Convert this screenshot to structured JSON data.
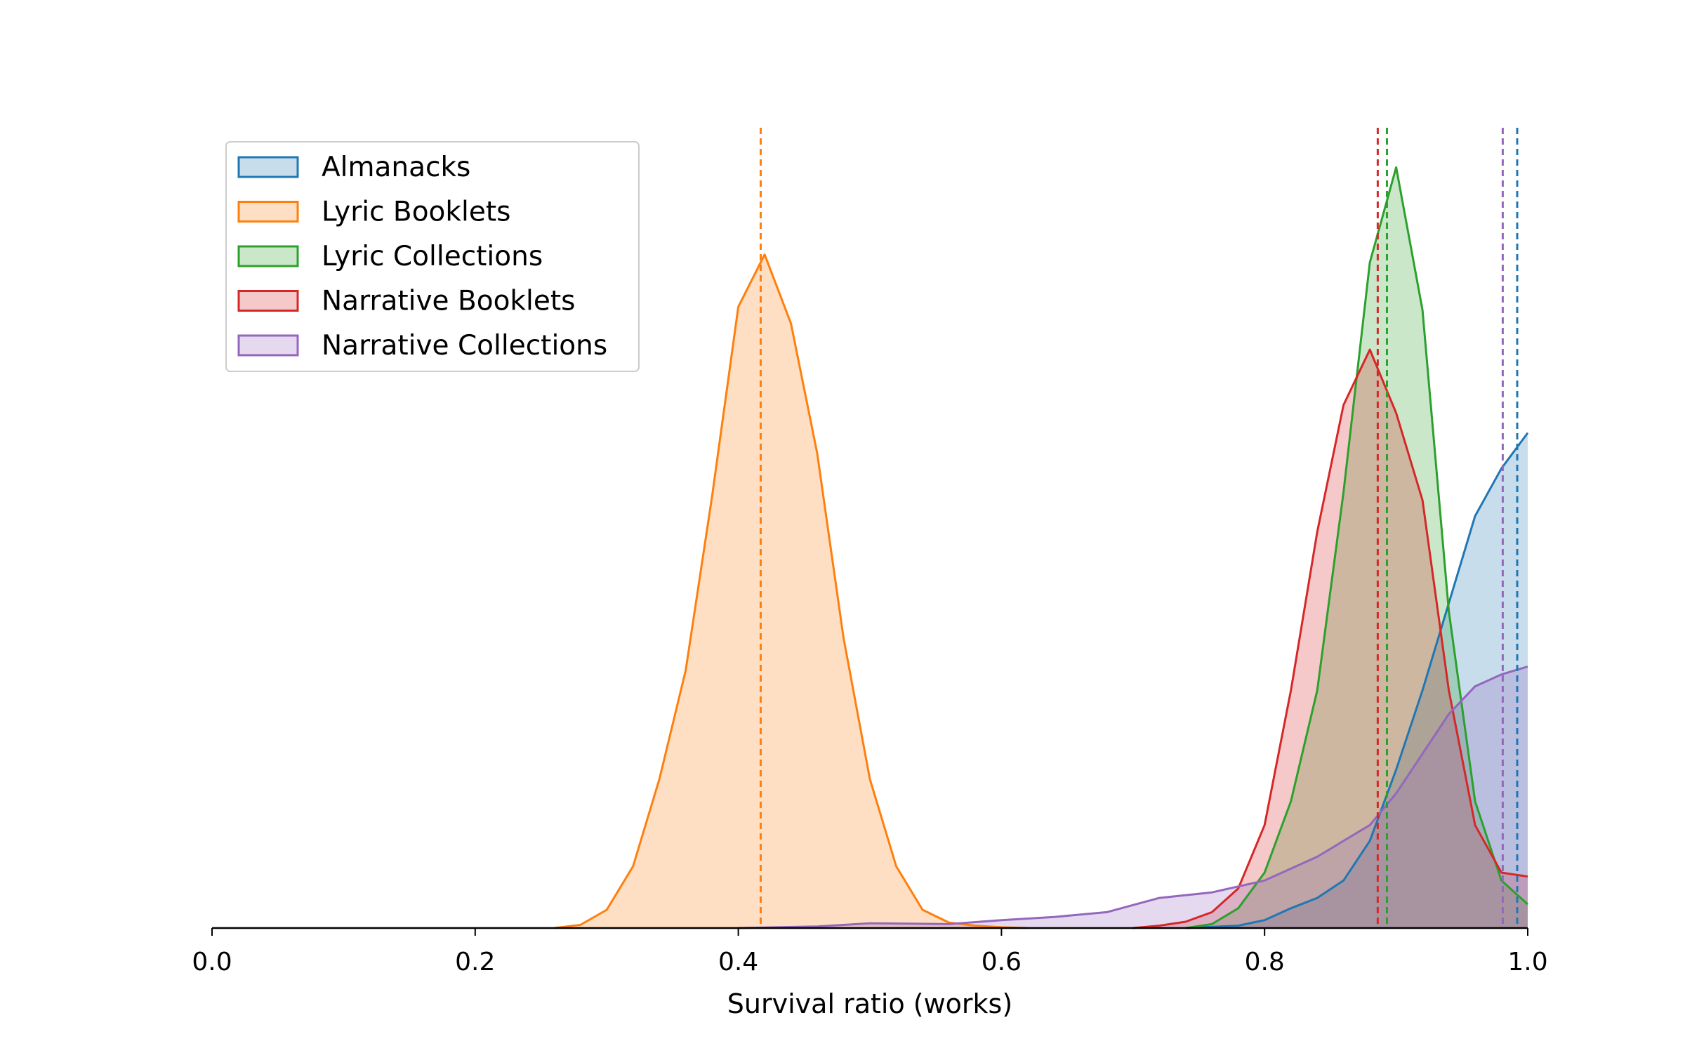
{
  "chart_data": {
    "type": "density",
    "x_label": "Survival ratio (works)",
    "xlim": [
      0,
      1
    ],
    "ylim": [
      0,
      10.1
    ],
    "xticks": [
      {
        "value": 0,
        "label": "0.0"
      },
      {
        "value": 0.2,
        "label": "0.2"
      },
      {
        "value": 0.4,
        "label": "0.4"
      },
      {
        "value": 0.6,
        "label": "0.6"
      },
      {
        "value": 0.8,
        "label": "0.8"
      },
      {
        "value": 1,
        "label": "1.0"
      }
    ],
    "legend": "upper left",
    "series": [
      {
        "name": "Almanacks",
        "color": "#1f77b4",
        "mean": 0.992,
        "x": [
          0.74,
          0.78,
          0.8,
          0.82,
          0.84,
          0.86,
          0.88,
          0.9,
          0.92,
          0.94,
          0.96,
          0.98,
          1.0
        ],
        "values": [
          0,
          0.03,
          0.1,
          0.25,
          0.38,
          0.6,
          1.1,
          2.0,
          3.0,
          4.1,
          5.2,
          5.8,
          6.25
        ]
      },
      {
        "name": "Lyric Booklets",
        "color": "#ff7f0e",
        "mean": 0.417,
        "x": [
          0.26,
          0.28,
          0.3,
          0.32,
          0.34,
          0.36,
          0.38,
          0.4,
          0.42,
          0.44,
          0.46,
          0.48,
          0.5,
          0.52,
          0.54,
          0.56,
          0.58,
          0.6,
          0.62
        ],
        "values": [
          0,
          0.04,
          0.23,
          0.78,
          1.88,
          3.25,
          5.44,
          7.84,
          8.5,
          7.63,
          5.99,
          3.66,
          1.88,
          0.78,
          0.23,
          0.07,
          0.03,
          0.01,
          0
        ]
      },
      {
        "name": "Lyric Collections",
        "color": "#2ca02c",
        "mean": 0.893,
        "x": [
          0.74,
          0.76,
          0.78,
          0.8,
          0.82,
          0.84,
          0.86,
          0.88,
          0.9,
          0.92,
          0.94,
          0.96,
          0.98,
          1.0
        ],
        "values": [
          0,
          0.05,
          0.25,
          0.7,
          1.6,
          3.0,
          5.5,
          8.4,
          9.6,
          7.8,
          4.0,
          1.6,
          0.6,
          0.3
        ]
      },
      {
        "name": "Narrative Booklets",
        "color": "#d62728",
        "mean": 0.886,
        "x": [
          0.7,
          0.72,
          0.74,
          0.76,
          0.78,
          0.8,
          0.82,
          0.84,
          0.86,
          0.88,
          0.9,
          0.92,
          0.94,
          0.96,
          0.98,
          1.0
        ],
        "values": [
          0,
          0.03,
          0.08,
          0.2,
          0.5,
          1.3,
          3.0,
          5.0,
          6.6,
          7.3,
          6.5,
          5.4,
          3.0,
          1.3,
          0.7,
          0.65
        ]
      },
      {
        "name": "Narrative Collections",
        "color": "#9467bd",
        "mean": 0.981,
        "x": [
          0.4,
          0.46,
          0.5,
          0.56,
          0.6,
          0.64,
          0.68,
          0.72,
          0.76,
          0.8,
          0.84,
          0.88,
          0.9,
          0.92,
          0.94,
          0.96,
          0.98,
          1.0
        ],
        "values": [
          0,
          0.02,
          0.06,
          0.05,
          0.1,
          0.14,
          0.2,
          0.38,
          0.45,
          0.6,
          0.9,
          1.3,
          1.7,
          2.2,
          2.7,
          3.05,
          3.2,
          3.3
        ]
      }
    ]
  }
}
